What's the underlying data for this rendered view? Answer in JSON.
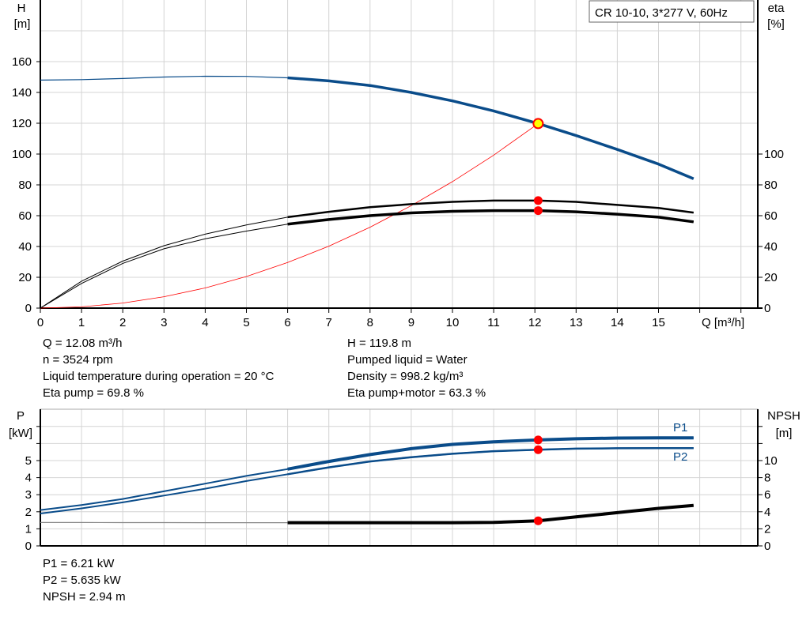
{
  "chart_data": [
    {
      "type": "line",
      "title": "CR 10-10, 3*277 V, 60Hz",
      "xlabel": "Q [m³/h]",
      "ylabel_left": [
        "H",
        "[m]"
      ],
      "ylabel_right": [
        "eta",
        "[%]"
      ],
      "xlim": [
        0,
        17.4
      ],
      "ylim_left": [
        0,
        200
      ],
      "ylim_right": [
        0,
        200
      ],
      "x_ticks": [
        0,
        1,
        2,
        3,
        4,
        5,
        6,
        7,
        8,
        9,
        10,
        11,
        12,
        13,
        14,
        15
      ],
      "y_ticks_left": [
        0,
        20,
        40,
        60,
        80,
        100,
        120,
        140,
        160
      ],
      "y_ticks_right": [
        0,
        20,
        40,
        60,
        80,
        100
      ],
      "grid": true,
      "legend": "top-right",
      "x": [
        0,
        1,
        2,
        3,
        4,
        5,
        6,
        7,
        8,
        9,
        10,
        11,
        12.08,
        13,
        14,
        15,
        15.85
      ],
      "series": [
        {
          "id": "H",
          "axis": "left",
          "color": "#0a4c8a",
          "values": [
            148,
            148.3,
            149,
            150,
            150.5,
            150.4,
            149.5,
            147.5,
            144.5,
            140,
            134.5,
            128,
            119.8,
            112,
            103,
            93.5,
            84
          ]
        },
        {
          "id": "eta_pump",
          "axis": "right",
          "color": "#000000",
          "values": [
            0,
            17.5,
            30.5,
            40.5,
            48,
            54,
            59,
            62.5,
            65.5,
            67.5,
            69,
            69.8,
            69.8,
            69,
            67,
            65,
            62
          ]
        },
        {
          "id": "eta_pump_motor",
          "axis": "right",
          "color": "#000000",
          "values": [
            0,
            16,
            29,
            38.5,
            45,
            50,
            54.5,
            57.5,
            60,
            61.8,
            62.8,
            63.3,
            63.3,
            62.5,
            61,
            59,
            56
          ]
        }
      ],
      "system_curve": {
        "color": "#ff0000",
        "x": [
          0,
          1,
          2,
          3,
          4,
          5,
          6,
          7,
          8,
          9,
          10,
          11,
          12.08
        ],
        "values": [
          0,
          0.8,
          3.3,
          7.4,
          13.1,
          20.5,
          29.6,
          40.2,
          52.5,
          66.5,
          82.1,
          99.3,
          119.8
        ]
      },
      "duty_point": {
        "x": 12.08,
        "H": 119.8,
        "eta_pump": 69.8,
        "eta_pump_motor": 63.3
      }
    },
    {
      "type": "line",
      "xlim": [
        0,
        17.4
      ],
      "ylabel_left": [
        "P",
        "[kW]"
      ],
      "ylabel_right": [
        "NPSH",
        "[m]"
      ],
      "ylim_left": [
        0,
        8
      ],
      "ylim_right": [
        0,
        16
      ],
      "y_ticks_left": [
        0,
        1,
        2,
        3,
        4,
        5
      ],
      "y_ticks_right": [
        0,
        2,
        4,
        6,
        8,
        10
      ],
      "grid": true,
      "x": [
        0,
        1,
        2,
        3,
        4,
        5,
        6,
        7,
        8,
        9,
        10,
        11,
        12.08,
        13,
        14,
        15,
        15.85
      ],
      "series": [
        {
          "id": "P1",
          "name": "P1",
          "axis": "left",
          "color": "#0a4c8a",
          "values": [
            2.1,
            2.4,
            2.75,
            3.2,
            3.65,
            4.1,
            4.5,
            4.95,
            5.35,
            5.7,
            5.95,
            6.1,
            6.21,
            6.28,
            6.32,
            6.33,
            6.33
          ]
        },
        {
          "id": "P2",
          "name": "P2",
          "axis": "left",
          "color": "#0a4c8a",
          "values": [
            1.9,
            2.2,
            2.55,
            2.95,
            3.35,
            3.8,
            4.2,
            4.6,
            4.95,
            5.2,
            5.4,
            5.55,
            5.635,
            5.7,
            5.72,
            5.73,
            5.73
          ]
        },
        {
          "id": "NPSH",
          "axis": "right",
          "color": "#000000",
          "values": [
            2.74,
            2.74,
            2.73,
            2.73,
            2.72,
            2.72,
            2.72,
            2.72,
            2.72,
            2.72,
            2.72,
            2.75,
            2.94,
            3.4,
            3.9,
            4.4,
            4.75
          ]
        }
      ],
      "duty_point": {
        "x": 12.08,
        "P1": 6.21,
        "P2": 5.635,
        "NPSH": 2.94
      }
    }
  ],
  "info_top": {
    "left": [
      "Q = 12.08 m³/h",
      "n = 3524 rpm",
      "Liquid temperature during operation = 20 °C",
      "Eta pump = 69.8 %"
    ],
    "right": [
      "H = 119.8 m",
      "Pumped liquid = Water",
      "Density = 998.2 kg/m³",
      "Eta pump+motor = 63.3 %"
    ]
  },
  "info_bottom": [
    "P1 = 6.21 kW",
    "P2 = 5.635 kW",
    "NPSH = 2.94 m"
  ]
}
